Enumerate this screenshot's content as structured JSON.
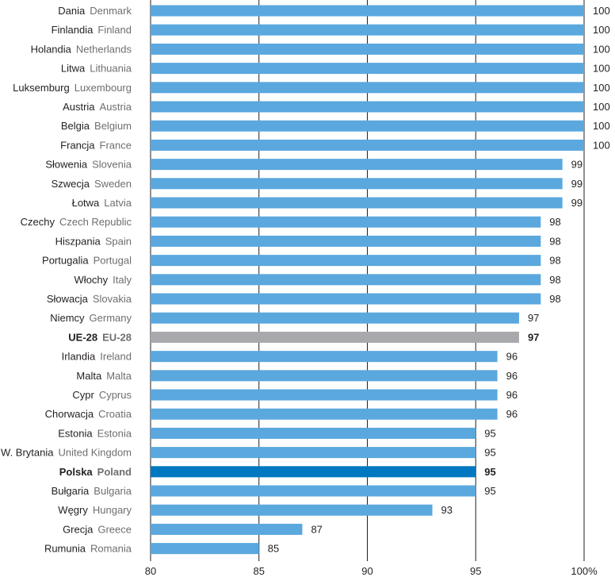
{
  "chart_data": {
    "type": "bar",
    "orientation": "horizontal",
    "xlim": [
      80,
      100
    ],
    "x_ticks": [
      {
        "value": 80,
        "label": "80"
      },
      {
        "value": 85,
        "label": "85"
      },
      {
        "value": 90,
        "label": "90"
      },
      {
        "value": 95,
        "label": "95"
      },
      {
        "value": 100,
        "label": "100%"
      }
    ],
    "grid": "vertical",
    "colors": {
      "default": "#5aa8de",
      "eu": "#a7a9ac",
      "poland": "#0078c1",
      "grid": "#231f20"
    },
    "categories": [
      {
        "pl": "Dania",
        "en": "Denmark",
        "value": 100
      },
      {
        "pl": "Finlandia",
        "en": "Finland",
        "value": 100
      },
      {
        "pl": "Holandia",
        "en": "Netherlands",
        "value": 100
      },
      {
        "pl": "Litwa",
        "en": "Lithuania",
        "value": 100
      },
      {
        "pl": "Luksemburg",
        "en": "Luxembourg",
        "value": 100
      },
      {
        "pl": "Austria",
        "en": "Austria",
        "value": 100
      },
      {
        "pl": "Belgia",
        "en": "Belgium",
        "value": 100
      },
      {
        "pl": "Francja",
        "en": "France",
        "value": 100
      },
      {
        "pl": "Słowenia",
        "en": "Slovenia",
        "value": 99
      },
      {
        "pl": "Szwecja",
        "en": "Sweden",
        "value": 99
      },
      {
        "pl": "Łotwa",
        "en": "Latvia",
        "value": 99
      },
      {
        "pl": "Czechy",
        "en": "Czech Republic",
        "value": 98
      },
      {
        "pl": "Hiszpania",
        "en": "Spain",
        "value": 98
      },
      {
        "pl": "Portugalia",
        "en": "Portugal",
        "value": 98
      },
      {
        "pl": "Włochy",
        "en": "Italy",
        "value": 98
      },
      {
        "pl": "Słowacja",
        "en": "Slovakia",
        "value": 98
      },
      {
        "pl": "Niemcy",
        "en": "Germany",
        "value": 97
      },
      {
        "pl": "UE-28",
        "en": "EU-28",
        "value": 97,
        "highlight": "eu"
      },
      {
        "pl": "Irlandia",
        "en": "Ireland",
        "value": 96
      },
      {
        "pl": "Malta",
        "en": "Malta",
        "value": 96
      },
      {
        "pl": "Cypr",
        "en": "Cyprus",
        "value": 96
      },
      {
        "pl": "Chorwacja",
        "en": "Croatia",
        "value": 96
      },
      {
        "pl": "Estonia",
        "en": "Estonia",
        "value": 95
      },
      {
        "pl": "W. Brytania",
        "en": "United Kingdom",
        "value": 95
      },
      {
        "pl": "Polska",
        "en": "Poland",
        "value": 95,
        "highlight": "poland"
      },
      {
        "pl": "Bułgaria",
        "en": "Bulgaria",
        "value": 95
      },
      {
        "pl": "Węgry",
        "en": "Hungary",
        "value": 93
      },
      {
        "pl": "Grecja",
        "en": "Greece",
        "value": 87
      },
      {
        "pl": "Rumunia",
        "en": "Romania",
        "value": 85
      }
    ]
  }
}
